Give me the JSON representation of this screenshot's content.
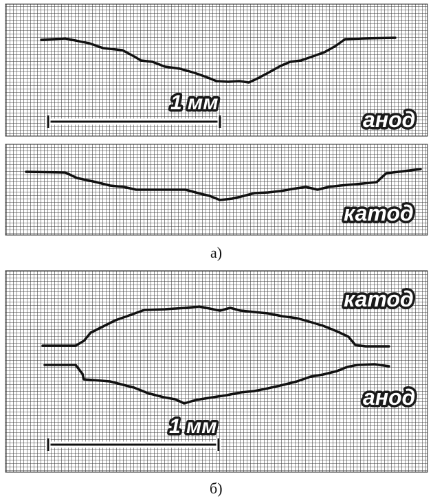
{
  "figure_a": {
    "caption": "а)",
    "scale_label": "1 мм",
    "top_panel_label": "анод",
    "bottom_panel_label": "катод"
  },
  "figure_b": {
    "caption": "б)",
    "scale_label": "1 мм",
    "upper_profile_label": "катод",
    "lower_profile_label": "анод"
  }
}
